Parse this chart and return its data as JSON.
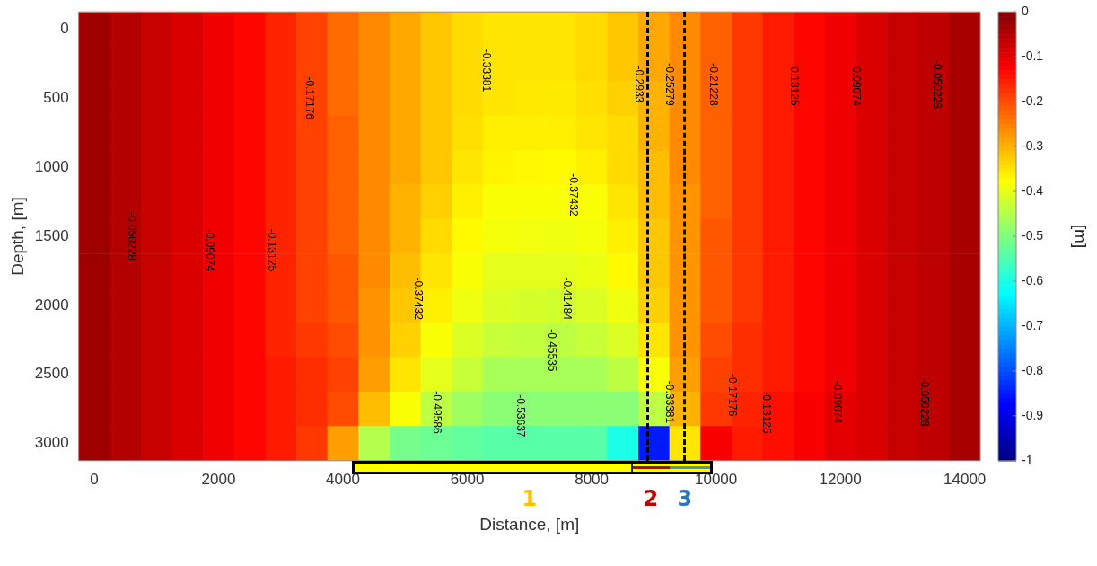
{
  "chart_data": {
    "type": "heatmap",
    "xlabel": "Distance, [m]",
    "ylabel": "Depth, [m]",
    "clabel": "[m]",
    "categories": [
      "0",
      null,
      null,
      null,
      "2000",
      null,
      null,
      null,
      "4000",
      null,
      null,
      null,
      "6000",
      null,
      null,
      null,
      "8000",
      null,
      null,
      null,
      "10000",
      null,
      null,
      null,
      "12000",
      null,
      null,
      null,
      "14000"
    ],
    "y_categories": [
      "0",
      null,
      "500",
      null,
      "1000",
      null,
      "1500",
      null,
      "2000",
      null,
      "2500",
      null,
      "3000"
    ],
    "clim": [
      -1,
      0
    ],
    "cticks": [
      -1,
      -0.9,
      -0.8,
      -0.7,
      -0.6,
      -0.5,
      -0.4,
      -0.3,
      -0.2,
      -0.1,
      0
    ],
    "cells": [
      [
        -0.03,
        -0.05,
        -0.07,
        -0.09,
        -0.11,
        -0.13,
        -0.16,
        -0.19,
        -0.23,
        -0.26,
        -0.29,
        -0.32,
        -0.34,
        -0.35,
        -0.35,
        -0.35,
        -0.34,
        -0.32,
        -0.29,
        -0.26,
        -0.22,
        -0.18,
        -0.15,
        -0.13,
        -0.11,
        -0.09,
        -0.07,
        -0.06,
        -0.04
      ],
      [
        -0.03,
        -0.05,
        -0.07,
        -0.09,
        -0.11,
        -0.13,
        -0.16,
        -0.19,
        -0.23,
        -0.26,
        -0.29,
        -0.32,
        -0.34,
        -0.35,
        -0.35,
        -0.35,
        -0.34,
        -0.32,
        -0.29,
        -0.26,
        -0.22,
        -0.18,
        -0.15,
        -0.13,
        -0.11,
        -0.09,
        -0.07,
        -0.06,
        -0.04
      ],
      [
        -0.03,
        -0.05,
        -0.07,
        -0.09,
        -0.11,
        -0.13,
        -0.16,
        -0.19,
        -0.23,
        -0.26,
        -0.29,
        -0.32,
        -0.34,
        -0.35,
        -0.353,
        -0.355,
        -0.345,
        -0.33,
        -0.3,
        -0.26,
        -0.22,
        -0.18,
        -0.15,
        -0.13,
        -0.11,
        -0.09,
        -0.07,
        -0.06,
        -0.04
      ],
      [
        -0.03,
        -0.05,
        -0.07,
        -0.09,
        -0.11,
        -0.13,
        -0.16,
        -0.19,
        -0.22,
        -0.26,
        -0.29,
        -0.32,
        -0.345,
        -0.36,
        -0.36,
        -0.36,
        -0.35,
        -0.34,
        -0.3,
        -0.26,
        -0.22,
        -0.18,
        -0.15,
        -0.13,
        -0.11,
        -0.09,
        -0.07,
        -0.06,
        -0.04
      ],
      [
        -0.03,
        -0.05,
        -0.07,
        -0.09,
        -0.11,
        -0.13,
        -0.16,
        -0.19,
        -0.22,
        -0.26,
        -0.29,
        -0.32,
        -0.35,
        -0.365,
        -0.368,
        -0.37,
        -0.36,
        -0.34,
        -0.31,
        -0.26,
        -0.22,
        -0.18,
        -0.15,
        -0.13,
        -0.11,
        -0.09,
        -0.07,
        -0.06,
        -0.04
      ],
      [
        -0.03,
        -0.05,
        -0.07,
        -0.09,
        -0.11,
        -0.13,
        -0.16,
        -0.19,
        -0.22,
        -0.26,
        -0.3,
        -0.33,
        -0.36,
        -0.38,
        -0.38,
        -0.38,
        -0.38,
        -0.35,
        -0.31,
        -0.27,
        -0.22,
        -0.18,
        -0.15,
        -0.13,
        -0.11,
        -0.09,
        -0.07,
        -0.06,
        -0.04
      ],
      [
        -0.03,
        -0.05,
        -0.07,
        -0.09,
        -0.11,
        -0.13,
        -0.16,
        -0.19,
        -0.22,
        -0.26,
        -0.3,
        -0.34,
        -0.37,
        -0.385,
        -0.388,
        -0.39,
        -0.385,
        -0.36,
        -0.32,
        -0.27,
        -0.21,
        -0.18,
        -0.15,
        -0.13,
        -0.11,
        -0.09,
        -0.07,
        -0.06,
        -0.04
      ],
      [
        -0.03,
        -0.05,
        -0.07,
        -0.09,
        -0.11,
        -0.13,
        -0.16,
        -0.19,
        -0.21,
        -0.26,
        -0.31,
        -0.35,
        -0.38,
        -0.4,
        -0.4,
        -0.4,
        -0.395,
        -0.37,
        -0.32,
        -0.27,
        -0.21,
        -0.18,
        -0.15,
        -0.13,
        -0.11,
        -0.09,
        -0.07,
        -0.06,
        -0.04
      ],
      [
        -0.03,
        -0.05,
        -0.07,
        -0.09,
        -0.11,
        -0.13,
        -0.16,
        -0.19,
        -0.21,
        -0.27,
        -0.32,
        -0.36,
        -0.39,
        -0.41,
        -0.415,
        -0.42,
        -0.41,
        -0.39,
        -0.33,
        -0.27,
        -0.21,
        -0.18,
        -0.15,
        -0.13,
        -0.11,
        -0.09,
        -0.07,
        -0.06,
        -0.04
      ],
      [
        -0.03,
        -0.05,
        -0.07,
        -0.09,
        -0.11,
        -0.13,
        -0.16,
        -0.18,
        -0.2,
        -0.27,
        -0.33,
        -0.38,
        -0.41,
        -0.43,
        -0.435,
        -0.44,
        -0.43,
        -0.41,
        -0.35,
        -0.27,
        -0.2,
        -0.17,
        -0.15,
        -0.13,
        -0.11,
        -0.09,
        -0.07,
        -0.06,
        -0.04
      ],
      [
        -0.03,
        -0.05,
        -0.07,
        -0.09,
        -0.11,
        -0.13,
        -0.15,
        -0.17,
        -0.19,
        -0.28,
        -0.35,
        -0.4,
        -0.43,
        -0.46,
        -0.46,
        -0.46,
        -0.46,
        -0.44,
        -0.38,
        -0.28,
        -0.19,
        -0.17,
        -0.15,
        -0.13,
        -0.11,
        -0.09,
        -0.07,
        -0.06,
        -0.04
      ],
      [
        -0.03,
        -0.05,
        -0.07,
        -0.09,
        -0.11,
        -0.13,
        -0.15,
        -0.17,
        -0.2,
        -0.31,
        -0.38,
        -0.44,
        -0.47,
        -0.49,
        -0.49,
        -0.49,
        -0.49,
        -0.49,
        -0.44,
        -0.3,
        -0.18,
        -0.16,
        -0.14,
        -0.12,
        -0.1,
        -0.09,
        -0.07,
        -0.06,
        -0.04
      ],
      [
        -0.03,
        -0.05,
        -0.07,
        -0.09,
        -0.11,
        -0.13,
        -0.15,
        -0.18,
        -0.28,
        -0.45,
        -0.51,
        -0.52,
        -0.53,
        -0.54,
        -0.54,
        -0.54,
        -0.54,
        -0.6,
        -0.85,
        -0.35,
        -0.12,
        -0.15,
        -0.14,
        -0.12,
        -0.1,
        -0.09,
        -0.07,
        -0.06,
        -0.04
      ]
    ],
    "annotations": [
      "-0.050228",
      "-0.09074",
      "-0.13125",
      "-0.17176",
      "-0.33381",
      "-0.37432",
      "-0.37432",
      "-0.41484",
      "-0.45535",
      "-0.49586",
      "-0.53637",
      "-0.2933",
      "-0.25279",
      "-0.21228",
      "-0.13125",
      "-0.09074",
      "-0.050228",
      "-0.33381",
      "-0.17176",
      "-0.13125",
      "-0.09074",
      "-0.050228",
      "1",
      "2",
      "3"
    ]
  }
}
